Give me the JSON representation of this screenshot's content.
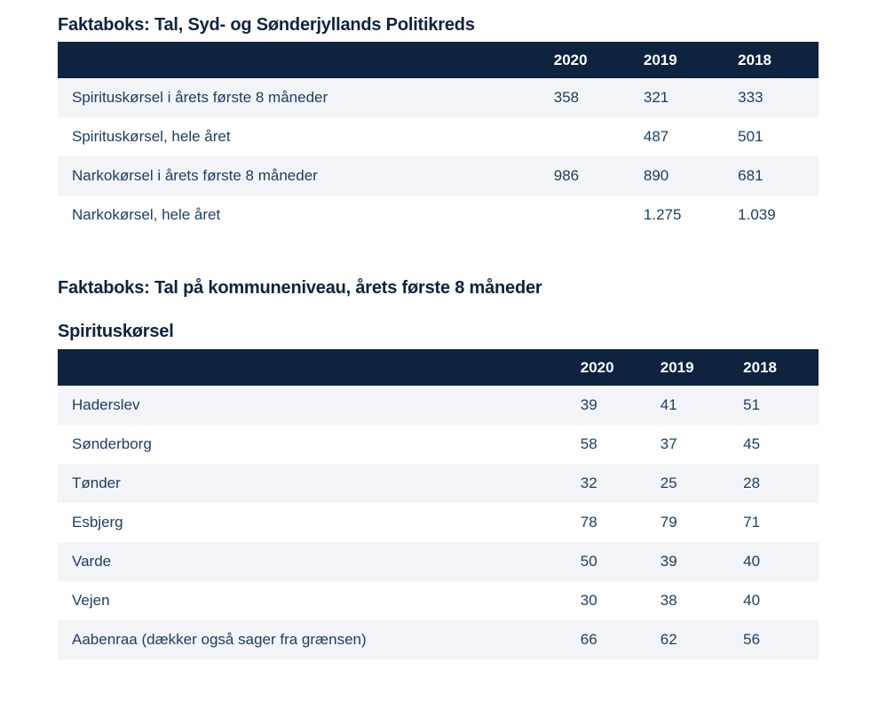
{
  "colors": {
    "header_bg": "#0d2340",
    "alt_row_bg": "#f3f4f7",
    "text": "#1d3e63",
    "title": "#0d2340"
  },
  "section1": {
    "title": "Faktaboks: Tal, Syd- og Sønderjyllands Politikreds",
    "table": {
      "headers": [
        "2020",
        "2019",
        "2018"
      ],
      "rows": [
        {
          "label": "Spirituskørsel i årets første 8 måneder",
          "values": [
            "358",
            "321",
            "333"
          ]
        },
        {
          "label": "Spirituskørsel, hele året",
          "values": [
            "",
            "487",
            "501"
          ]
        },
        {
          "label": "Narkokørsel i årets første 8 måneder",
          "values": [
            "986",
            "890",
            "681"
          ]
        },
        {
          "label": "Narkokørsel, hele året",
          "values": [
            "",
            "1.275",
            "1.039"
          ]
        }
      ]
    }
  },
  "section2": {
    "title": "Faktaboks: Tal på kommuneniveau, årets første 8 måneder",
    "subtitle": "Spirituskørsel",
    "table": {
      "headers": [
        "2020",
        "2019",
        "2018"
      ],
      "rows": [
        {
          "label": "Haderslev",
          "values": [
            "39",
            "41",
            "51"
          ]
        },
        {
          "label": "Sønderborg",
          "values": [
            "58",
            "37",
            "45"
          ]
        },
        {
          "label": "Tønder",
          "values": [
            "32",
            "25",
            "28"
          ]
        },
        {
          "label": "Esbjerg",
          "values": [
            "78",
            "79",
            "71"
          ]
        },
        {
          "label": "Varde",
          "values": [
            "50",
            "39",
            "40"
          ]
        },
        {
          "label": "Vejen",
          "values": [
            "30",
            "38",
            "40"
          ]
        },
        {
          "label": "Aabenraa (dækker også sager fra grænsen)",
          "values": [
            "66",
            "62",
            "56"
          ]
        }
      ]
    }
  }
}
